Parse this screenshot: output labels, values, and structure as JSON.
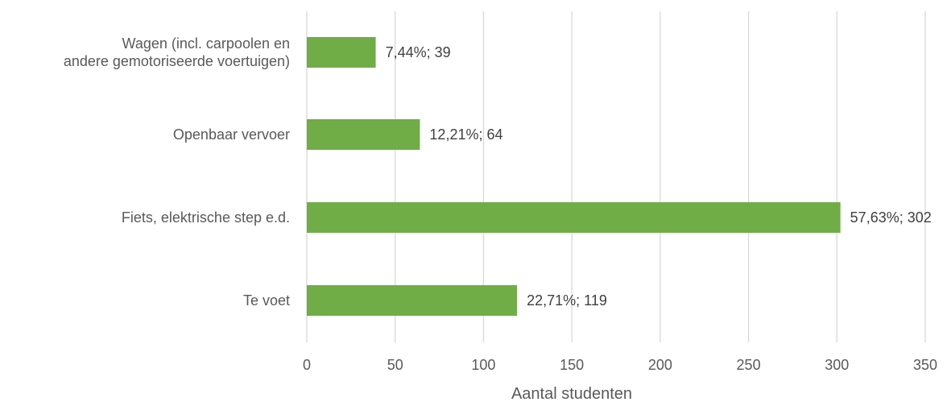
{
  "chart_data": {
    "type": "bar",
    "orientation": "horizontal",
    "categories": [
      [
        "Wagen (incl. carpoolen en",
        "andere gemotoriseerde voertuigen)"
      ],
      [
        "Openbaar vervoer"
      ],
      [
        "Fiets, elektrische step e.d."
      ],
      [
        "Te voet"
      ]
    ],
    "values": [
      39,
      64,
      302,
      119
    ],
    "data_labels": [
      "7,44%; 39",
      "12,21%; 64",
      "57,63%; 302",
      "22,71%; 119"
    ],
    "xlabel": "Aantal studenten",
    "ylabel": "",
    "title": "",
    "xlim": [
      0,
      350
    ],
    "xticks": [
      0,
      50,
      100,
      150,
      200,
      250,
      300,
      350
    ],
    "grid": true,
    "legend": "none",
    "bar_color": "#70ad47"
  }
}
